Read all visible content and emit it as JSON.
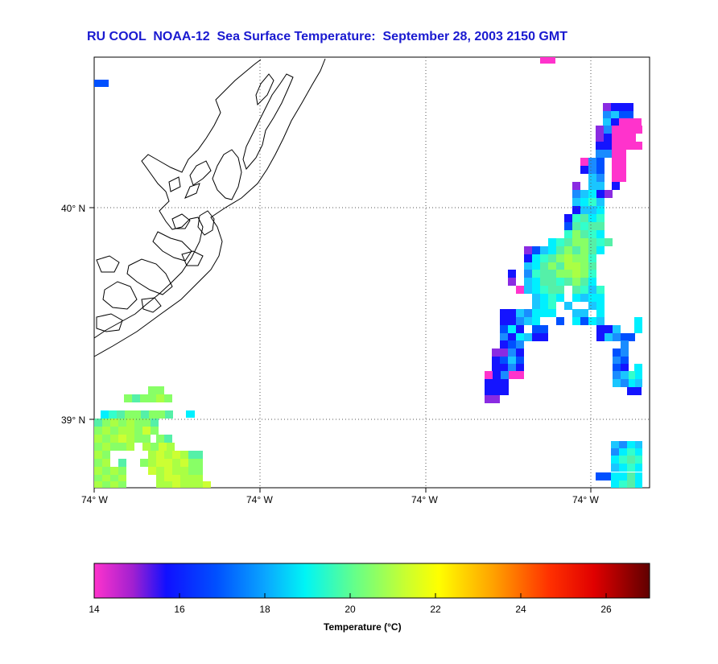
{
  "title": "RU COOL  NOAA-12  Sea Surface Temperature:  September 28, 2003 2150 GMT",
  "map": {
    "lat_labels": [
      "40° N",
      "39° N"
    ],
    "lon_labels": [
      "74° W",
      "74° W",
      "74° W",
      "74° W"
    ],
    "land_color": "#ffffff",
    "coastline_color": "#000000",
    "grid": "dotted"
  },
  "colorbar": {
    "label": "Temperature (°C)",
    "range": [
      14,
      27
    ],
    "ticks": [
      "14",
      "16",
      "18",
      "20",
      "22",
      "24",
      "26"
    ],
    "colormap": [
      "#ff33cc",
      "#7a1fd6",
      "#0033ff",
      "#0a8bff",
      "#00f0f0",
      "#66ff88",
      "#c8ff33",
      "#ffff00",
      "#ffb000",
      "#ff5000",
      "#ff0000",
      "#c00000",
      "#700000"
    ]
  }
}
